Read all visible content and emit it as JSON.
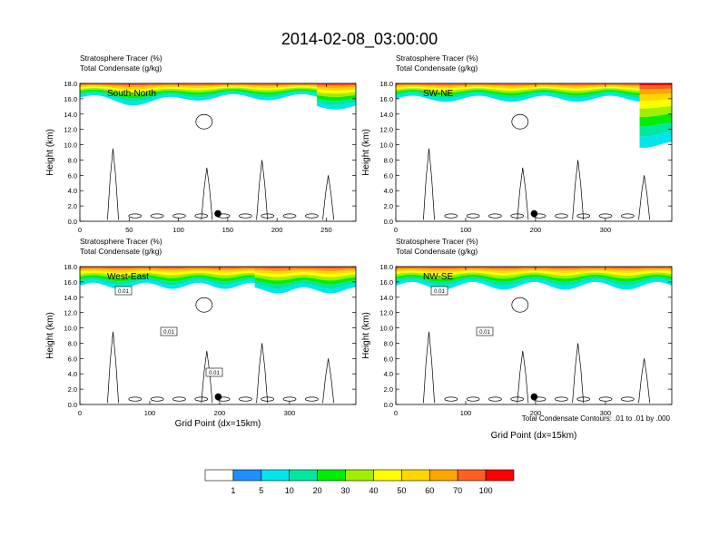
{
  "figure": {
    "title": "2014-02-08_03:00:00",
    "x_axis_title": "Grid Point (dx=15km)",
    "contour_note": "Total Condensate Contours: .01 to .01 by .000"
  },
  "colorbar": {
    "levels": [
      "1",
      "5",
      "10",
      "20",
      "30",
      "40",
      "50",
      "60",
      "70",
      "100"
    ],
    "colors": [
      "#ffffff",
      "#1e90ff",
      "#00e5ee",
      "#00e8a0",
      "#00ee00",
      "#a0ee00",
      "#ffff00",
      "#ffd700",
      "#ffa500",
      "#ff6020",
      "#ff0000"
    ]
  },
  "chart_data": [
    {
      "type": "heatmap",
      "panel_label": "South-North",
      "header_lines": [
        "Stratosphere Tracer   (%)",
        "Total Condensate   (g/kg)"
      ],
      "ylabel": "Height (km)",
      "xlabel": "",
      "xlim": [
        0,
        280
      ],
      "ylim": [
        0,
        18
      ],
      "x_ticks": [
        "0",
        "50",
        "100",
        "150",
        "200",
        "250"
      ],
      "x_tick_values": [
        0,
        50,
        100,
        150,
        200,
        250
      ],
      "y_ticks": [
        "0.0",
        "2.0",
        "4.0",
        "6.0",
        "8.0",
        "10.0",
        "12.0",
        "14.0",
        "16.0",
        "18.0"
      ],
      "marker_x": 140,
      "marker_y": 1.0,
      "contour_box_labels": []
    },
    {
      "type": "heatmap",
      "panel_label": "SW-NE",
      "header_lines": [
        "Stratosphere Tracer   (%)",
        "Total Condensate   (g/kg)"
      ],
      "ylabel": "Height (km)",
      "xlabel": "",
      "xlim": [
        0,
        395
      ],
      "ylim": [
        0,
        18
      ],
      "x_ticks": [
        "0",
        "100",
        "200",
        "300"
      ],
      "x_tick_values": [
        0,
        100,
        200,
        300
      ],
      "y_ticks": [
        "0.0",
        "2.0",
        "4.0",
        "6.0",
        "8.0",
        "10.0",
        "12.0",
        "14.0",
        "16.0",
        "18.0"
      ],
      "marker_x": 198,
      "marker_y": 1.0,
      "contour_box_labels": []
    },
    {
      "type": "heatmap",
      "panel_label": "West-East",
      "header_lines": [
        "Stratosphere Tracer   (%)",
        "Total Condensate   (g/kg)"
      ],
      "ylabel": "Height (km)",
      "xlabel": "Grid Point (dx=15km)",
      "xlim": [
        0,
        395
      ],
      "ylim": [
        0,
        18
      ],
      "x_ticks": [
        "0",
        "100",
        "200",
        "300"
      ],
      "x_tick_values": [
        0,
        100,
        200,
        300
      ],
      "y_ticks": [
        "0.0",
        "2.0",
        "4.0",
        "6.0",
        "8.0",
        "10.0",
        "12.0",
        "14.0",
        "16.0",
        "18.0"
      ],
      "marker_x": 198,
      "marker_y": 1.0,
      "contour_box_labels": [
        "0.01",
        "0.01",
        "0.01"
      ]
    },
    {
      "type": "heatmap",
      "panel_label": "NW-SE",
      "header_lines": [
        "Stratosphere Tracer   (%)",
        "Total Condensate   (g/kg)"
      ],
      "ylabel": "Height (km)",
      "xlabel": "Grid Point (dx=15km)",
      "xlim": [
        0,
        395
      ],
      "ylim": [
        0,
        18
      ],
      "x_ticks": [
        "0",
        "100",
        "200",
        "300"
      ],
      "x_tick_values": [
        0,
        100,
        200,
        300
      ],
      "y_ticks": [
        "0.0",
        "2.0",
        "4.0",
        "6.0",
        "8.0",
        "10.0",
        "12.0",
        "14.0",
        "16.0",
        "18.0"
      ],
      "marker_x": 198,
      "marker_y": 1.0,
      "contour_box_labels": [
        "0.01",
        "0.01"
      ]
    }
  ]
}
